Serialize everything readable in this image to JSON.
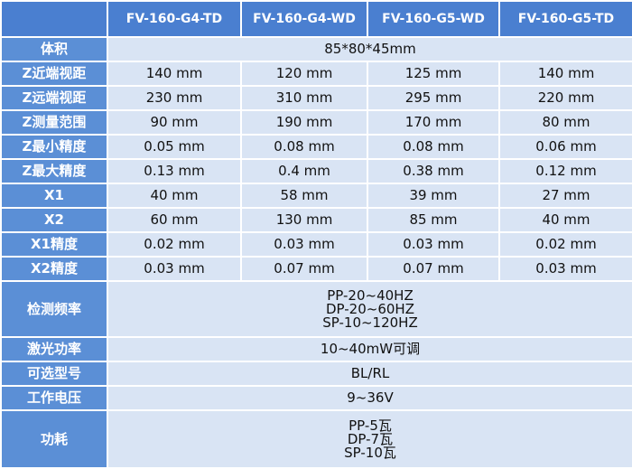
{
  "header": {
    "columns": [
      "FV-160-G4-TD",
      "FV-160-G4-WD",
      "FV-160-G5-WD",
      "FV-160-G5-TD"
    ]
  },
  "rows": [
    {
      "label": "体积",
      "cells": [
        "85*80*45mm"
      ]
    },
    {
      "label": "Z近端视距",
      "cells": [
        "140 mm",
        "120 mm",
        "125 mm",
        "140 mm"
      ]
    },
    {
      "label": "Z远端视距",
      "cells": [
        "230 mm",
        "310 mm",
        "295 mm",
        "220 mm"
      ]
    },
    {
      "label": "Z测量范围",
      "cells": [
        "90 mm",
        "190 mm",
        "170 mm",
        "80 mm"
      ]
    },
    {
      "label": "Z最小精度",
      "cells": [
        "0.05 mm",
        "0.08 mm",
        "0.08 mm",
        "0.06 mm"
      ]
    },
    {
      "label": "Z最大精度",
      "cells": [
        "0.13 mm",
        "0.4 mm",
        "0.38 mm",
        "0.12 mm"
      ]
    },
    {
      "label": "X1",
      "cells": [
        "40 mm",
        "58 mm",
        "39 mm",
        "27 mm"
      ]
    },
    {
      "label": "X2",
      "cells": [
        "60 mm",
        "130 mm",
        "85 mm",
        "40 mm"
      ]
    },
    {
      "label": "X1精度",
      "cells": [
        "0.02 mm",
        "0.03 mm",
        "0.03 mm",
        "0.02 mm"
      ]
    },
    {
      "label": "X2精度",
      "cells": [
        "0.03 mm",
        "0.07 mm",
        "0.07 mm",
        "0.03 mm"
      ]
    },
    {
      "label": "检测频率",
      "cells": [
        [
          "PP-20~40HZ",
          "DP-20~60HZ",
          "SP-10~120HZ"
        ]
      ]
    },
    {
      "label": "激光功率",
      "cells": [
        "10~40mW可调"
      ]
    },
    {
      "label": "可选型号",
      "cells": [
        "BL/RL"
      ]
    },
    {
      "label": "工作电压",
      "cells": [
        "9~36V"
      ]
    },
    {
      "label": "功耗",
      "cells": [
        [
          "PP-5瓦",
          "DP-7瓦",
          "SP-10瓦"
        ]
      ]
    }
  ]
}
